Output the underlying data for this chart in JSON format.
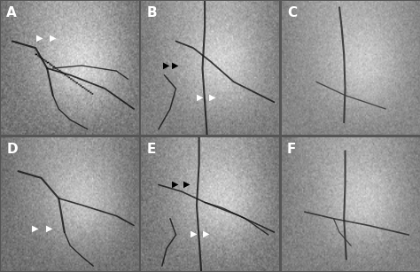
{
  "figsize": [
    4.74,
    3.07
  ],
  "dpi": 100,
  "nrows": 2,
  "ncols": 3,
  "labels": [
    "A",
    "B",
    "C",
    "D",
    "E",
    "F"
  ],
  "label_color": "white",
  "label_fontsize": 11,
  "label_fontweight": "bold",
  "bg_color": "#888888",
  "border_color": "white",
  "panel_bg_colors": [
    [
      "#666666",
      "#707070",
      "#787878"
    ],
    [
      "#6a6a6a",
      "#686868",
      "#747474"
    ]
  ],
  "hspace": 0.02,
  "wspace": 0.02
}
